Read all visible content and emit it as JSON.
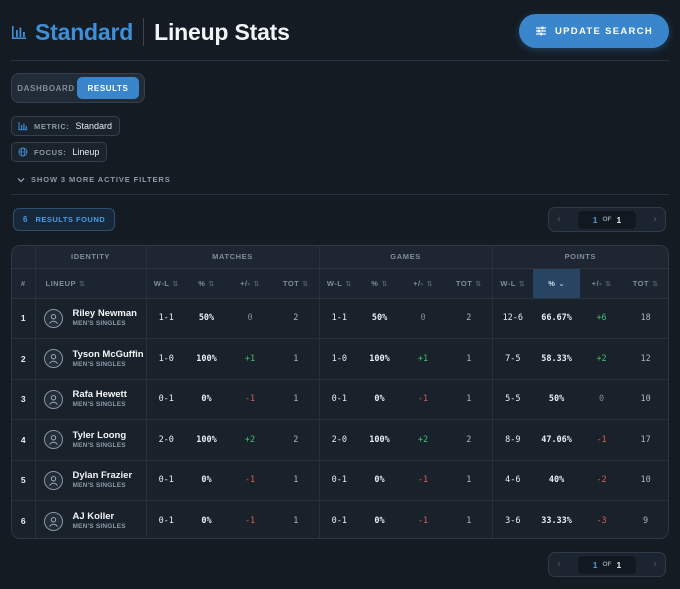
{
  "header": {
    "title_accent": "Standard",
    "title_main": "Lineup Stats",
    "update_button": "UPDATE SEARCH"
  },
  "view_toggle": {
    "options": [
      "DASHBOARD",
      "RESULTS"
    ],
    "active": "RESULTS"
  },
  "filters": [
    {
      "label": "METRIC:",
      "value": "Standard",
      "icon": "bar-chart-icon"
    },
    {
      "label": "FOCUS:",
      "value": "Lineup",
      "icon": "globe-icon"
    }
  ],
  "more_filters": "SHOW 3 MORE ACTIVE FILTERS",
  "results": {
    "count": "6",
    "label": "RESULTS FOUND"
  },
  "pagination": {
    "current": "1",
    "of": "OF",
    "total": "1"
  },
  "table": {
    "group_headers": [
      "IDENTITY",
      "MATCHES",
      "GAMES",
      "POINTS"
    ],
    "columns": {
      "index": "#",
      "lineup": "LINEUP",
      "wl": "W-L",
      "pct": "%",
      "diff": "+/-",
      "tot": "TOT"
    },
    "rows": [
      {
        "idx": "1",
        "name": "Riley Newman",
        "category": "MEN'S SINGLES",
        "m_wl": "1-1",
        "m_pct": "50%",
        "m_diff": "0",
        "m_tot": "2",
        "g_wl": "1-1",
        "g_pct": "50%",
        "g_diff": "0",
        "g_tot": "2",
        "p_wl": "12-6",
        "p_pct": "66.67%",
        "p_diff": "+6",
        "p_tot": "18"
      },
      {
        "idx": "2",
        "name": "Tyson McGuffin",
        "category": "MEN'S SINGLES",
        "m_wl": "1-0",
        "m_pct": "100%",
        "m_diff": "+1",
        "m_tot": "1",
        "g_wl": "1-0",
        "g_pct": "100%",
        "g_diff": "+1",
        "g_tot": "1",
        "p_wl": "7-5",
        "p_pct": "58.33%",
        "p_diff": "+2",
        "p_tot": "12"
      },
      {
        "idx": "3",
        "name": "Rafa Hewett",
        "category": "MEN'S SINGLES",
        "m_wl": "0-1",
        "m_pct": "0%",
        "m_diff": "-1",
        "m_tot": "1",
        "g_wl": "0-1",
        "g_pct": "0%",
        "g_diff": "-1",
        "g_tot": "1",
        "p_wl": "5-5",
        "p_pct": "50%",
        "p_diff": "0",
        "p_tot": "10"
      },
      {
        "idx": "4",
        "name": "Tyler Loong",
        "category": "MEN'S SINGLES",
        "m_wl": "2-0",
        "m_pct": "100%",
        "m_diff": "+2",
        "m_tot": "2",
        "g_wl": "2-0",
        "g_pct": "100%",
        "g_diff": "+2",
        "g_tot": "2",
        "p_wl": "8-9",
        "p_pct": "47.06%",
        "p_diff": "-1",
        "p_tot": "17"
      },
      {
        "idx": "5",
        "name": "Dylan Frazier",
        "category": "MEN'S SINGLES",
        "m_wl": "0-1",
        "m_pct": "0%",
        "m_diff": "-1",
        "m_tot": "1",
        "g_wl": "0-1",
        "g_pct": "0%",
        "g_diff": "-1",
        "g_tot": "1",
        "p_wl": "4-6",
        "p_pct": "40%",
        "p_diff": "-2",
        "p_tot": "10"
      },
      {
        "idx": "6",
        "name": "AJ Koller",
        "category": "MEN'S SINGLES",
        "m_wl": "0-1",
        "m_pct": "0%",
        "m_diff": "-1",
        "m_tot": "1",
        "g_wl": "0-1",
        "g_pct": "0%",
        "g_diff": "-1",
        "g_tot": "1",
        "p_wl": "3-6",
        "p_pct": "33.33%",
        "p_diff": "-3",
        "p_tot": "9"
      }
    ]
  },
  "colors": {
    "accent": "#3a86cc",
    "positive": "#3fbf6d",
    "negative": "#e0585a",
    "background": "#141b23"
  }
}
